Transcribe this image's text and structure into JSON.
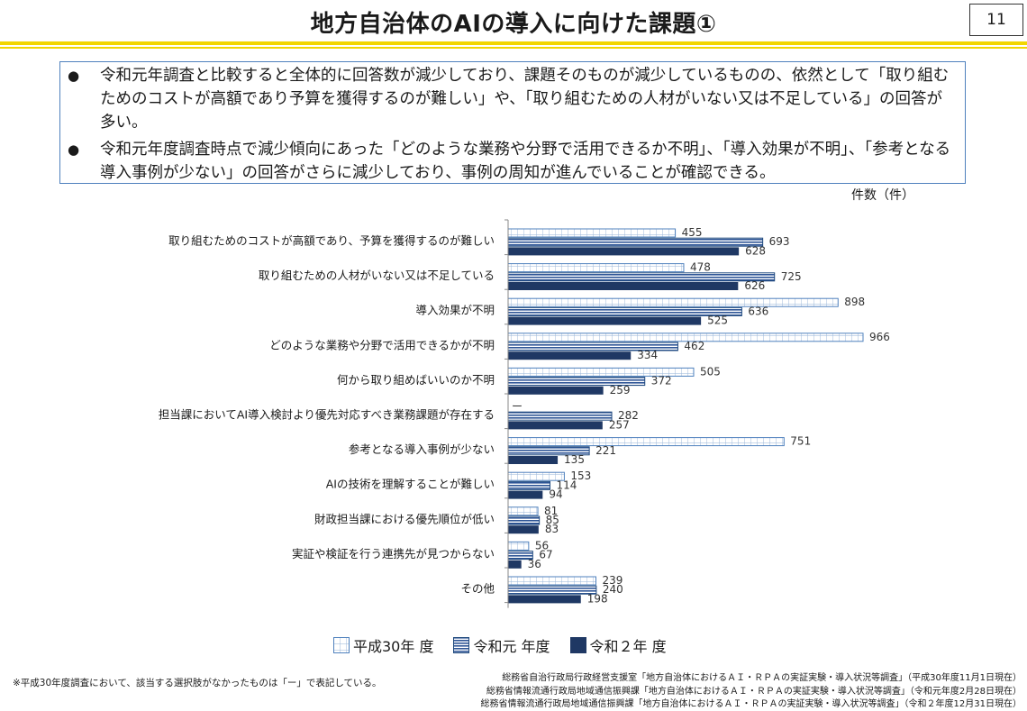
{
  "header": {
    "title": "地方自治体のAIの導入に向けた課題①",
    "page_number": "11"
  },
  "summary": {
    "bullets": [
      {
        "symbol": "●",
        "text": "令和元年調査と比較すると全体的に回答数が減少しており、課題そのものが減少しているものの、依然として「取り組むためのコストが高額であり予算を獲得するのが難しい」や、「取り組むための人材がいない又は不足している」の回答が多い。"
      },
      {
        "symbol": "●",
        "text": "令和元年度調査時点で減少傾向にあった「どのような業務や分野で活用できるか不明」、「導入効果が不明」、「参考となる導入事例が少ない」の回答がさらに減少しており、事例の周知が進んでいることが確認できる。"
      }
    ]
  },
  "chart_data": {
    "type": "bar",
    "orientation": "horizontal",
    "unit_label": "件数（件）",
    "categories": [
      "取り組むためのコストが高額であり、予算を獲得するのが難しい",
      "取り組むための人材がいない又は不足している",
      "導入効果が不明",
      "どのような業務や分野で活用できるかが不明",
      "何から取り組めばいいのか不明",
      "担当課においてAI導入検討より優先対応すべき業務課題が存在する",
      "参考となる導入事例が少ない",
      "AIの技術を理解することが難しい",
      "財政担当課における優先順位が低い",
      "実証や検証を行う連携先が見つからない",
      "その他"
    ],
    "series": [
      {
        "name": "平成30年 度",
        "pattern": "grid",
        "color": "#4f81bd",
        "values": [
          455,
          478,
          898,
          966,
          505,
          null,
          751,
          153,
          81,
          56,
          239
        ],
        "labels": [
          "455",
          "478",
          "898",
          "966",
          "505",
          "ー",
          "751",
          "153",
          "81",
          "56",
          "239"
        ]
      },
      {
        "name": "令和元 年度",
        "pattern": "stripes",
        "color": "#1f497d",
        "values": [
          693,
          725,
          636,
          462,
          372,
          282,
          221,
          114,
          85,
          67,
          240
        ],
        "labels": [
          "693",
          "725",
          "636",
          "462",
          "372",
          "282",
          "221",
          "114",
          "85",
          "67",
          "240"
        ]
      },
      {
        "name": "令和２年 度",
        "pattern": "solid",
        "color": "#1f3864",
        "values": [
          628,
          626,
          525,
          334,
          259,
          257,
          135,
          94,
          83,
          36,
          198
        ],
        "labels": [
          "628",
          "626",
          "525",
          "334",
          "259",
          "257",
          "135",
          "94",
          "83",
          "36",
          "198"
        ]
      }
    ],
    "xlim": [
      0,
      1000
    ],
    "legend_position": "bottom"
  },
  "footnote": "※平成30年度調査において、該当する選択肢がなかったものは「ー」で表記している。",
  "sources": [
    "総務省自治行政局行政経営支援室「地方自治体におけるＡＩ・ＲＰＡの実証実験・導入状況等調査」（平成30年度11月1日現在）",
    "総務省情報流通行政局地域通信振興課「地方自治体におけるＡＩ・ＲＰＡの実証実験・導入状況等調査」（令和元年度2月28日現在）",
    "総務省情報流通行政局地域通信振興課「地方自治体におけるＡＩ・ＲＰＡの実証実験・導入状況等調査」（令和２年度12月31日現在）"
  ]
}
